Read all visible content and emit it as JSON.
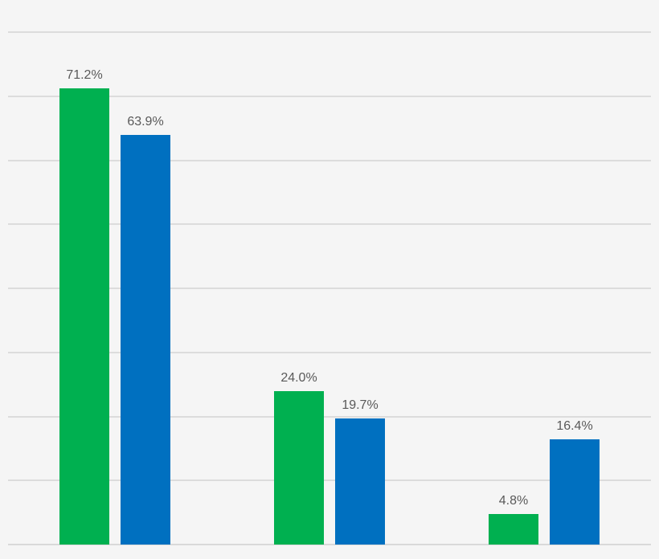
{
  "chart_data": {
    "type": "bar",
    "categories": [
      "",
      "",
      ""
    ],
    "series": [
      {
        "name": "green",
        "color": "#00B050",
        "values": [
          71.2,
          24.0,
          4.8
        ],
        "data_labels": [
          "71.2%",
          "24.0%",
          "4.8%"
        ]
      },
      {
        "name": "blue",
        "color": "#0070C0",
        "values": [
          63.9,
          19.7,
          16.4
        ],
        "data_labels": [
          "63.9%",
          "19.7%",
          "16.4%"
        ]
      }
    ],
    "ylim": [
      0,
      80
    ],
    "gridline_step": 10,
    "grid": true,
    "legend": "none",
    "axis_tick_labels": "none",
    "background_color": "#f5f5f5",
    "gridline_color": "#dcdcdc",
    "axis_line_color": "#d9d9d9",
    "data_label_color": "#595959"
  }
}
